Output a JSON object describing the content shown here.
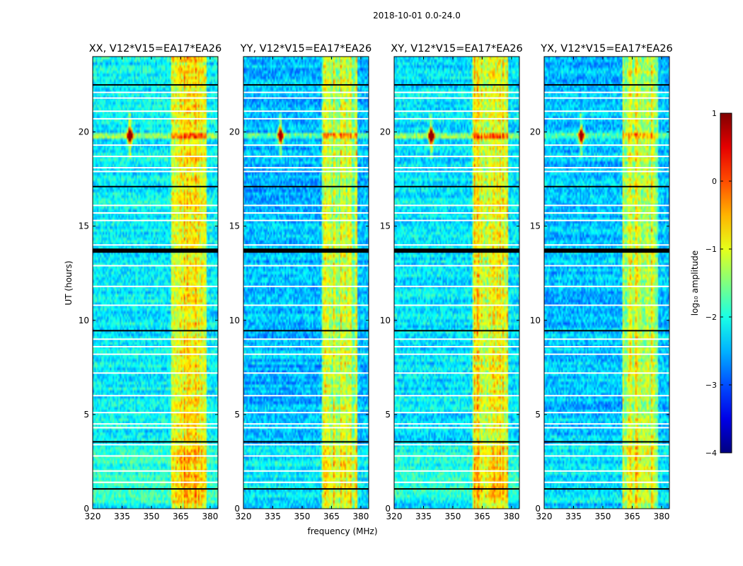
{
  "suptitle": "2018-10-01 0.0-24.0",
  "chart_data": {
    "type": "heatmap",
    "ylabel": "UT (hours)",
    "xlabel": "frequency (MHz)",
    "xlim": [
      320,
      384
    ],
    "ylim": [
      0,
      24
    ],
    "xticks": [
      "320",
      "335",
      "350",
      "365",
      "380"
    ],
    "yticks": [
      "0",
      "5",
      "10",
      "15",
      "20"
    ],
    "xtick_values": [
      320,
      335,
      350,
      365,
      380
    ],
    "ytick_values": [
      0,
      5,
      10,
      15,
      20
    ],
    "panels": [
      {
        "title": "XX, V12*V15=EA17*EA26",
        "pol": "XX",
        "source_intensity": 1.0,
        "background": 0.55
      },
      {
        "title": "YY, V12*V15=EA17*EA26",
        "pol": "YY",
        "source_intensity": 0.85,
        "background": 0.42
      },
      {
        "title": "XY, V12*V15=EA17*EA26",
        "pol": "XY",
        "source_intensity": 0.95,
        "background": 0.52
      },
      {
        "title": "YX, V12*V15=EA17*EA26",
        "pol": "YX",
        "source_intensity": 0.8,
        "background": 0.44
      }
    ],
    "bright_source": {
      "freq_mhz": 339,
      "time_hours": 19.8
    },
    "rfi_band_mhz": [
      360,
      378
    ],
    "flagged_rows_hours": [
      1.05,
      3.55,
      9.45,
      13.7,
      17.1,
      22.5
    ],
    "gap_rows_hours": [
      1.4,
      2.0,
      2.8,
      3.4,
      4.3,
      4.5,
      5.1,
      6.0,
      7.2,
      8.2,
      8.6,
      9.0,
      10.8,
      11.8,
      12.9,
      14.0,
      15.3,
      15.7,
      16.1,
      17.9,
      18.1,
      18.7,
      19.3,
      20.7,
      21.1,
      21.8,
      22.1
    ],
    "colorbar": {
      "label": "log₁₀ amplitude",
      "ticks": [
        "1",
        "0",
        "−1",
        "−2",
        "−3",
        "−4"
      ],
      "tick_values": [
        1,
        0,
        -1,
        -2,
        -3,
        -4
      ],
      "range": [
        -4,
        1
      ],
      "colormap": "jet"
    }
  }
}
